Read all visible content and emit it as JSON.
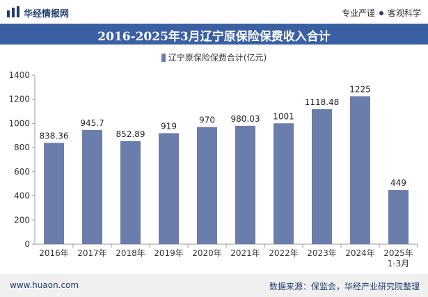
{
  "header": {
    "brand": "华经情报网",
    "slogan_left": "专业严谨",
    "slogan_right": "客观科学"
  },
  "footer": {
    "url": "www.huaon.com",
    "source": "数据来源：保监会，华经产业研究院整理"
  },
  "colors": {
    "bar": "#6b7dab",
    "title_bg": "#3a5fa3",
    "brand": "#1f3b70"
  },
  "chart_data": {
    "type": "bar",
    "title": "2016-2025年3月辽宁原保险保费收入合计",
    "categories": [
      "2016年",
      "2017年",
      "2018年",
      "2019年",
      "2020年",
      "2021年",
      "2022年",
      "2023年",
      "2024年",
      "2025年\n1-3月"
    ],
    "series": [
      {
        "name": "辽宁原保险保费合计(亿元)",
        "values": [
          838.36,
          945.7,
          852.89,
          919,
          970,
          980.03,
          1001,
          1118.48,
          1225,
          449
        ]
      }
    ],
    "data_labels": [
      "838.36",
      "945.7",
      "852.89",
      "919",
      "970",
      "980.03",
      "1001",
      "1118.48",
      "1225",
      "449"
    ],
    "ylim": [
      0,
      1400
    ],
    "yticks": [
      0,
      200,
      400,
      600,
      800,
      1000,
      1200,
      1400
    ],
    "grid": false,
    "legend_position": "top-center"
  }
}
